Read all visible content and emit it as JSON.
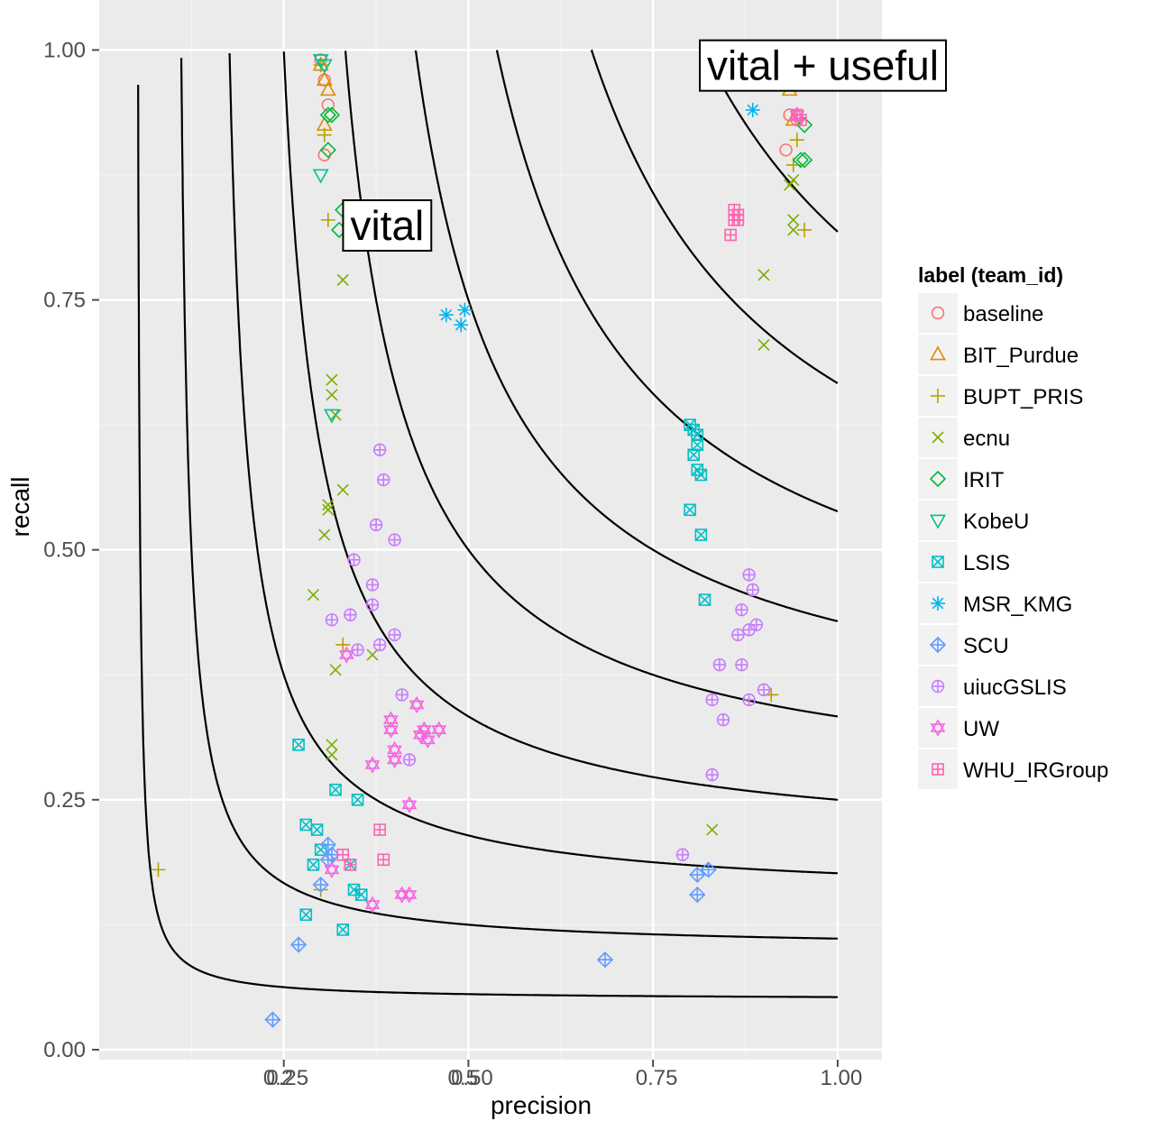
{
  "chart_data": {
    "type": "scatter",
    "title": "",
    "xlabel": "precision",
    "ylabel": "recall",
    "xlim": [
      0.0,
      1.06
    ],
    "ylim": [
      -0.01,
      1.05
    ],
    "grid": true,
    "x_ticks": [
      {
        "value": 0.25,
        "label": "0.25"
      },
      {
        "value": 0.5,
        "label": "0.50"
      },
      {
        "value": 0.75,
        "label": "0.75"
      },
      {
        "value": 1.0,
        "label": "1.00"
      }
    ],
    "x_ticks_overlay": [
      {
        "value": 0.24,
        "label": "0.2"
      },
      {
        "value": 0.49,
        "label": "0.5"
      }
    ],
    "y_ticks": [
      {
        "value": 0.0,
        "label": "0.00"
      },
      {
        "value": 0.25,
        "label": "0.25"
      },
      {
        "value": 0.5,
        "label": "0.50"
      },
      {
        "value": 0.75,
        "label": "0.75"
      },
      {
        "value": 1.0,
        "label": "1.00"
      }
    ],
    "legend_title": "label (team_id)",
    "legend_position": "right",
    "f_curves": [
      0.1,
      0.2,
      0.3,
      0.4,
      0.5,
      0.6,
      0.7,
      0.8,
      0.9
    ],
    "annotations": [
      {
        "text": "vital",
        "x": 0.39,
        "y": 0.81
      },
      {
        "text": "vital + useful",
        "x": 0.98,
        "y": 0.97
      }
    ],
    "series": [
      {
        "name": "baseline",
        "color": "#F8766D",
        "shape": "circle",
        "points": [
          [
            0.3,
            0.99
          ],
          [
            0.305,
            0.97
          ],
          [
            0.31,
            0.945
          ],
          [
            0.305,
            0.895
          ],
          [
            0.94,
            0.99
          ],
          [
            0.935,
            0.935
          ],
          [
            0.93,
            0.9
          ],
          [
            0.945,
            0.93
          ]
        ]
      },
      {
        "name": "BIT_Purdue",
        "color": "#DE8C00",
        "shape": "triangle",
        "points": [
          [
            0.3,
            0.985
          ],
          [
            0.305,
            0.97
          ],
          [
            0.31,
            0.96
          ],
          [
            0.305,
            0.925
          ],
          [
            0.94,
            0.985
          ],
          [
            0.935,
            0.96
          ],
          [
            0.94,
            0.93
          ]
        ]
      },
      {
        "name": "BUPT_PRIS",
        "color": "#B79F00",
        "shape": "plus",
        "points": [
          [
            0.08,
            0.18
          ],
          [
            0.3,
            0.985
          ],
          [
            0.305,
            0.915
          ],
          [
            0.31,
            0.83
          ],
          [
            0.33,
            0.405
          ],
          [
            0.3,
            0.16
          ],
          [
            0.94,
            0.97
          ],
          [
            0.945,
            0.91
          ],
          [
            0.94,
            0.885
          ],
          [
            0.955,
            0.82
          ],
          [
            0.91,
            0.355
          ]
        ]
      },
      {
        "name": "ecnu",
        "color": "#7CAE00",
        "shape": "cross",
        "points": [
          [
            0.33,
            0.77
          ],
          [
            0.315,
            0.67
          ],
          [
            0.315,
            0.655
          ],
          [
            0.32,
            0.635
          ],
          [
            0.33,
            0.56
          ],
          [
            0.31,
            0.545
          ],
          [
            0.31,
            0.54
          ],
          [
            0.305,
            0.515
          ],
          [
            0.29,
            0.455
          ],
          [
            0.37,
            0.395
          ],
          [
            0.32,
            0.38
          ],
          [
            0.315,
            0.305
          ],
          [
            0.315,
            0.295
          ],
          [
            0.94,
            0.87
          ],
          [
            0.935,
            0.865
          ],
          [
            0.94,
            0.83
          ],
          [
            0.94,
            0.82
          ],
          [
            0.9,
            0.775
          ],
          [
            0.9,
            0.705
          ],
          [
            0.83,
            0.22
          ]
        ]
      },
      {
        "name": "IRIT",
        "color": "#00BA38",
        "shape": "diamond",
        "points": [
          [
            0.31,
            0.935
          ],
          [
            0.315,
            0.935
          ],
          [
            0.31,
            0.9
          ],
          [
            0.33,
            0.84
          ],
          [
            0.325,
            0.82
          ],
          [
            0.955,
            0.925
          ],
          [
            0.95,
            0.89
          ],
          [
            0.955,
            0.89
          ]
        ]
      },
      {
        "name": "KobeU",
        "color": "#00C08B",
        "shape": "triangle-down",
        "points": [
          [
            0.3,
            0.99
          ],
          [
            0.305,
            0.985
          ],
          [
            0.3,
            0.875
          ],
          [
            0.315,
            0.635
          ],
          [
            0.94,
            0.99
          ],
          [
            0.94,
            0.975
          ]
        ]
      },
      {
        "name": "LSIS",
        "color": "#00BFC4",
        "shape": "square-cross",
        "points": [
          [
            0.8,
            0.625
          ],
          [
            0.805,
            0.62
          ],
          [
            0.81,
            0.615
          ],
          [
            0.81,
            0.605
          ],
          [
            0.805,
            0.595
          ],
          [
            0.81,
            0.58
          ],
          [
            0.815,
            0.575
          ],
          [
            0.8,
            0.54
          ],
          [
            0.815,
            0.515
          ],
          [
            0.82,
            0.45
          ],
          [
            0.27,
            0.305
          ],
          [
            0.32,
            0.26
          ],
          [
            0.35,
            0.25
          ],
          [
            0.28,
            0.225
          ],
          [
            0.295,
            0.22
          ],
          [
            0.3,
            0.2
          ],
          [
            0.29,
            0.185
          ],
          [
            0.34,
            0.185
          ],
          [
            0.345,
            0.16
          ],
          [
            0.355,
            0.155
          ],
          [
            0.28,
            0.135
          ],
          [
            0.33,
            0.12
          ]
        ]
      },
      {
        "name": "MSR_KMG",
        "color": "#00B4F0",
        "shape": "asterisk",
        "points": [
          [
            0.885,
            0.94
          ],
          [
            0.47,
            0.735
          ],
          [
            0.495,
            0.74
          ],
          [
            0.49,
            0.725
          ]
        ]
      },
      {
        "name": "SCU",
        "color": "#619CFF",
        "shape": "diamond-plus",
        "points": [
          [
            0.31,
            0.205
          ],
          [
            0.315,
            0.195
          ],
          [
            0.31,
            0.19
          ],
          [
            0.3,
            0.165
          ],
          [
            0.27,
            0.105
          ],
          [
            0.235,
            0.03
          ],
          [
            0.685,
            0.09
          ],
          [
            0.825,
            0.18
          ],
          [
            0.81,
            0.175
          ],
          [
            0.81,
            0.155
          ]
        ]
      },
      {
        "name": "uiucGSLIS",
        "color": "#C77CFF",
        "shape": "circle-plus",
        "points": [
          [
            0.38,
            0.6
          ],
          [
            0.385,
            0.57
          ],
          [
            0.375,
            0.525
          ],
          [
            0.4,
            0.51
          ],
          [
            0.345,
            0.49
          ],
          [
            0.37,
            0.465
          ],
          [
            0.37,
            0.445
          ],
          [
            0.34,
            0.435
          ],
          [
            0.315,
            0.43
          ],
          [
            0.4,
            0.415
          ],
          [
            0.35,
            0.4
          ],
          [
            0.38,
            0.405
          ],
          [
            0.41,
            0.355
          ],
          [
            0.42,
            0.29
          ],
          [
            0.88,
            0.475
          ],
          [
            0.885,
            0.46
          ],
          [
            0.87,
            0.44
          ],
          [
            0.89,
            0.425
          ],
          [
            0.88,
            0.42
          ],
          [
            0.865,
            0.415
          ],
          [
            0.84,
            0.385
          ],
          [
            0.87,
            0.385
          ],
          [
            0.9,
            0.36
          ],
          [
            0.88,
            0.35
          ],
          [
            0.83,
            0.35
          ],
          [
            0.845,
            0.33
          ],
          [
            0.83,
            0.275
          ],
          [
            0.79,
            0.195
          ]
        ]
      },
      {
        "name": "UW",
        "color": "#F564E3",
        "shape": "star-of-david",
        "points": [
          [
            0.335,
            0.395
          ],
          [
            0.395,
            0.33
          ],
          [
            0.395,
            0.32
          ],
          [
            0.43,
            0.345
          ],
          [
            0.44,
            0.32
          ],
          [
            0.435,
            0.315
          ],
          [
            0.445,
            0.31
          ],
          [
            0.46,
            0.32
          ],
          [
            0.4,
            0.3
          ],
          [
            0.4,
            0.29
          ],
          [
            0.37,
            0.285
          ],
          [
            0.42,
            0.245
          ],
          [
            0.315,
            0.18
          ],
          [
            0.37,
            0.145
          ],
          [
            0.41,
            0.155
          ],
          [
            0.42,
            0.155
          ],
          [
            0.945,
            0.935
          ]
        ]
      },
      {
        "name": "WHU_IRGroup",
        "color": "#FF64B0",
        "shape": "square-plus",
        "points": [
          [
            0.86,
            0.84
          ],
          [
            0.865,
            0.835
          ],
          [
            0.86,
            0.83
          ],
          [
            0.865,
            0.83
          ],
          [
            0.855,
            0.815
          ],
          [
            0.38,
            0.22
          ],
          [
            0.34,
            0.185
          ],
          [
            0.33,
            0.195
          ],
          [
            0.385,
            0.19
          ],
          [
            0.945,
            0.935
          ],
          [
            0.95,
            0.93
          ]
        ]
      }
    ]
  }
}
